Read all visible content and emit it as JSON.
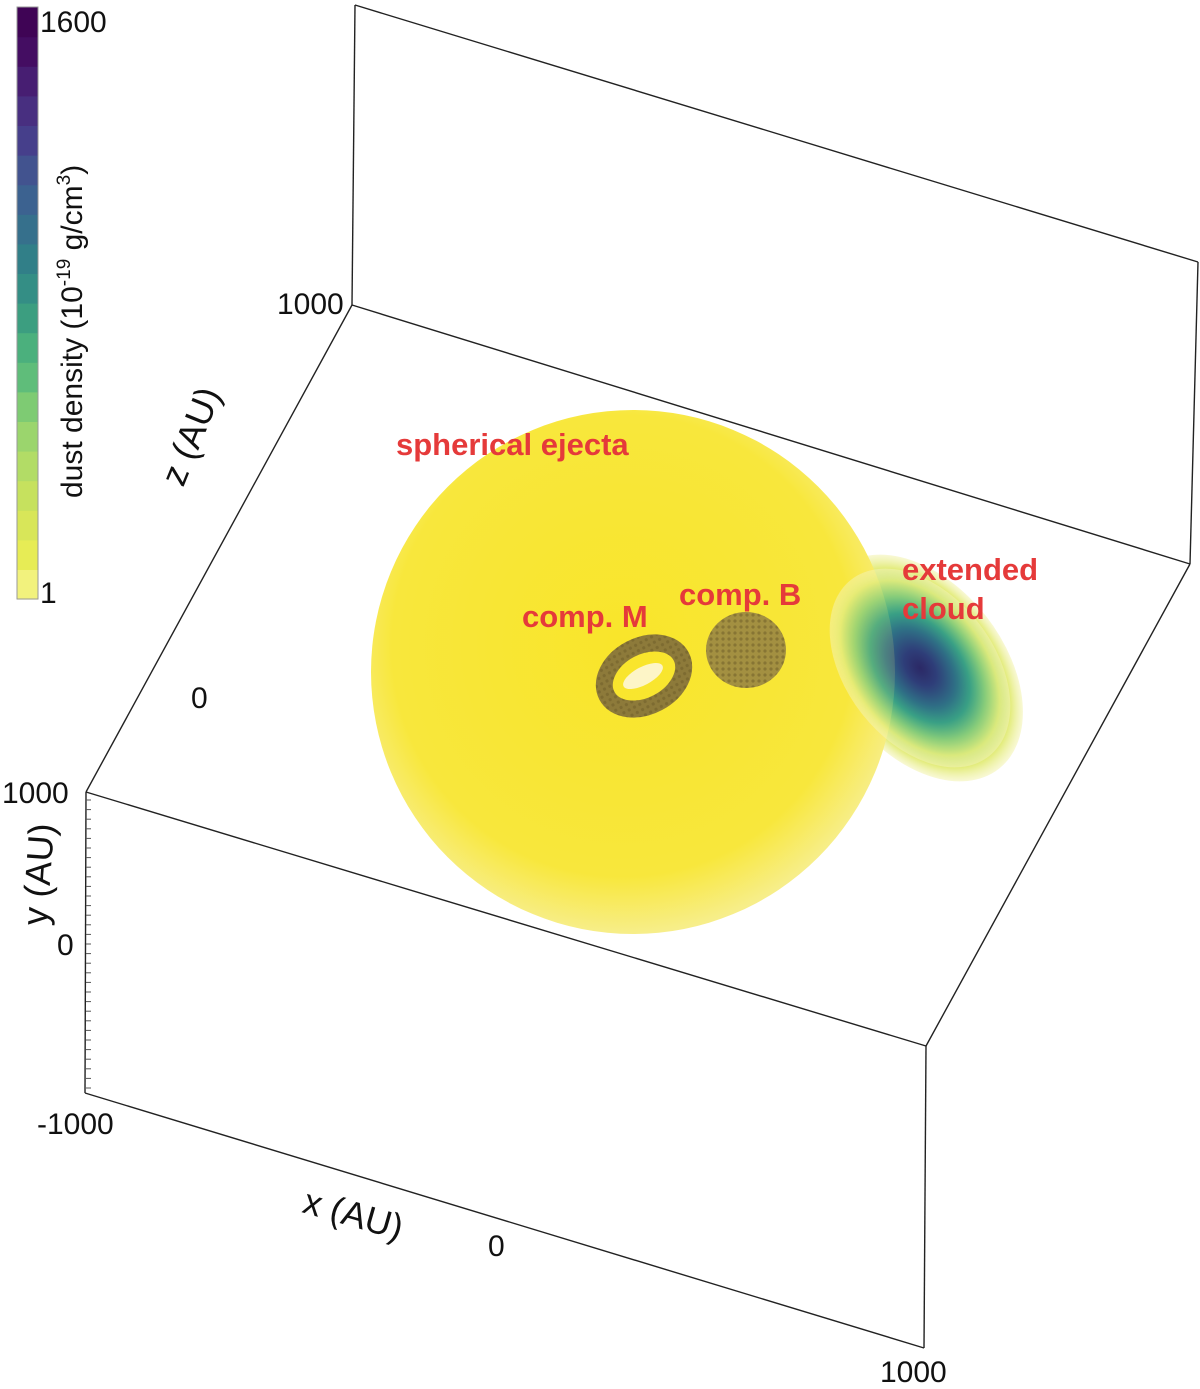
{
  "colorbar": {
    "label": "dust density (10",
    "label_exp": "-19",
    "label_unit": " g/cm",
    "label_unit_exp": "3",
    "label_close": ")",
    "max_label": "1600",
    "min_label": "1",
    "colors": [
      "#f2f27d",
      "#e7ec55",
      "#d8e659",
      "#c6e15e",
      "#b2dc66",
      "#9bd56d",
      "#7ecb73",
      "#5fbd7a",
      "#4bb07d",
      "#3c9e80",
      "#348e85",
      "#317f88",
      "#36708c",
      "#3c6290",
      "#42538f",
      "#463f8b",
      "#482f80",
      "#471e72",
      "#440d62",
      "#3f0455"
    ]
  },
  "axes": {
    "z_tick_top": "1000",
    "z_tick_mid": "0",
    "z_label": "z (AU)",
    "y_tick_top": "1000",
    "y_tick_mid": "0",
    "y_label": "y (AU)",
    "x_tick_left": "-1000",
    "x_tick_mid": "0",
    "x_tick_right": "1000",
    "x_label": "x (AU)"
  },
  "annotations": {
    "spherical": "spherical ejecta",
    "comp_m": "comp. M",
    "comp_b": "comp. B",
    "extended_line1": "extended",
    "extended_line2": "cloud"
  },
  "colors": {
    "ejecta": "#f7e532",
    "ring": "#8c7a3c",
    "annotation": "#e53a3a",
    "cloud_core": "#2e2f6e"
  }
}
